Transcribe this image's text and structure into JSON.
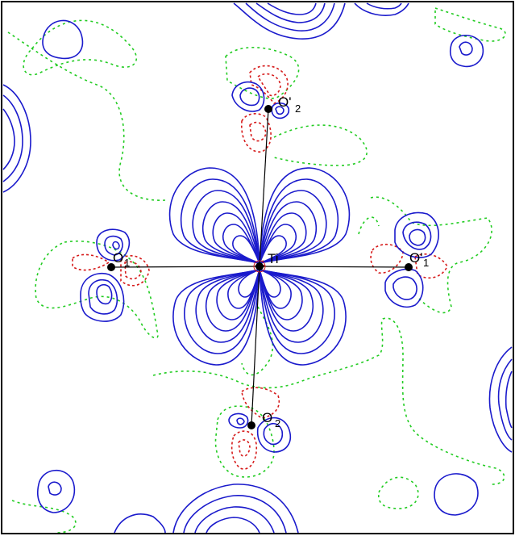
{
  "colors": {
    "positive": "#1a1acc",
    "negative": "#d61a1a",
    "zero": "#22cc22",
    "bond": "#000000"
  },
  "atoms": {
    "ti": {
      "symbol": "Ti",
      "sub": ""
    },
    "o_left": {
      "symbol": "O",
      "sub": "1"
    },
    "o_right": {
      "symbol": "O'",
      "sub": "1"
    },
    "o_top": {
      "symbol": "O'",
      "sub": "2"
    },
    "o_bottom": {
      "symbol": "O",
      "sub": "2"
    }
  }
}
